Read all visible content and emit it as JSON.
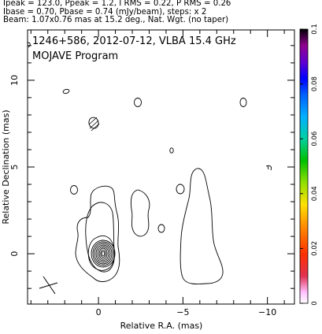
{
  "header": {
    "line1": "Ipeak = 123.0, Ppeak = 1.2, I RMS = 0.22, P RMS = 0.26",
    "line2": "Ibase = 0.70, Pbase = 0.74 (mJy/beam), steps: x 2",
    "line3": "Beam: 1.07x0.76 mas at 15.2 deg., Nat. Wgt. (no taper)"
  },
  "chart_data": {
    "type": "contour",
    "title": "1246+586, 2012-07-12, VLBA 15.4 GHz",
    "subtitle": "MOJAVE Program",
    "xlabel": "Relative R.A. (mas)",
    "ylabel": "Relative Declination (mas)",
    "xlim": [
      4.2,
      -11.6
    ],
    "ylim": [
      -2.9,
      12.9
    ],
    "xticks": [
      0,
      -5,
      -10
    ],
    "xtick_labels": [
      "0",
      "−5",
      "−10"
    ],
    "yticks": [
      0,
      5,
      10
    ],
    "ytick_labels": [
      "0",
      "5",
      "10"
    ],
    "core": {
      "x": 0,
      "y": 0
    },
    "jet_components": [
      {
        "x": -0.1,
        "y": 0.4
      },
      {
        "x": -6.5,
        "y": 2.8
      }
    ],
    "beam": {
      "major_mas": 1.07,
      "minor_mas": 0.76,
      "pa_deg": 15.2,
      "x": 3.2,
      "y": -1.9
    },
    "colorbar": {
      "vmin": 0,
      "vmax": 0.1,
      "ticks": [
        "0",
        "0.02",
        "0.04",
        "0.06",
        "0.08",
        "0.1"
      ]
    },
    "colors": {
      "contour": "#000000",
      "axis": "#000000"
    }
  }
}
